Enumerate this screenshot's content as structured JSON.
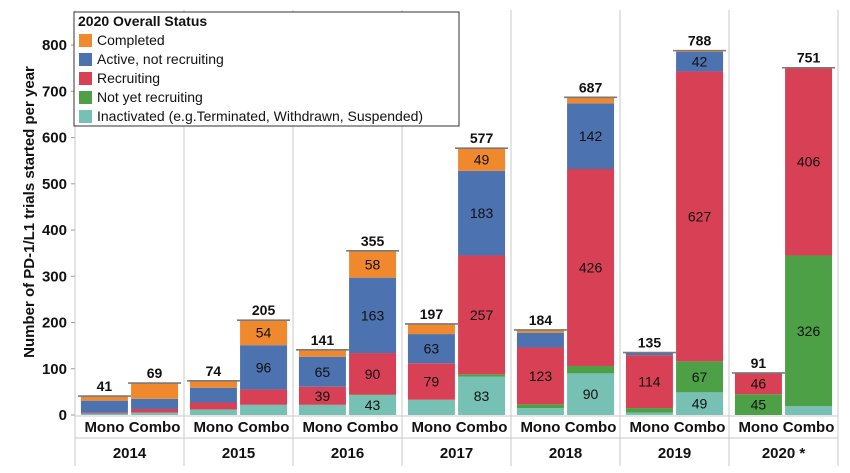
{
  "chart_data": {
    "type": "bar",
    "stacked": true,
    "title": "",
    "xlabel": "",
    "ylabel": "Number of PD-1/L1 trials started per year",
    "ylim": [
      0,
      850
    ],
    "yticks": [
      0,
      100,
      200,
      300,
      400,
      500,
      600,
      700,
      800
    ],
    "grid": false,
    "legend": {
      "title": "2020 Overall Status",
      "placement": "top-left",
      "entries": [
        {
          "label": "Completed",
          "color": "#F0882E"
        },
        {
          "label": "Active, not recruiting",
          "color": "#4C72B0"
        },
        {
          "label": "Recruiting",
          "color": "#D84155"
        },
        {
          "label": "Not yet recruiting",
          "color": "#4DA046"
        },
        {
          "label": "Inactivated (e.g.Terminated, Withdrawn, Suspended)",
          "color": "#76C1B3"
        }
      ]
    },
    "years": [
      "2014",
      "2015",
      "2016",
      "2017",
      "2018",
      "2019",
      "2020 *"
    ],
    "subcategories": [
      "Mono",
      "Combo"
    ],
    "bars": [
      {
        "year": "2014",
        "cat": "Mono",
        "total": "41",
        "segments": [
          {
            "status": "Inactivated",
            "value": 3,
            "label": ""
          },
          {
            "status": "Not yet recruiting",
            "value": 0,
            "label": ""
          },
          {
            "status": "Recruiting",
            "value": 2,
            "label": ""
          },
          {
            "status": "Active, not recruiting",
            "value": 26,
            "label": ""
          },
          {
            "status": "Completed",
            "value": 10,
            "label": ""
          }
        ]
      },
      {
        "year": "2014",
        "cat": "Combo",
        "total": "69",
        "segments": [
          {
            "status": "Inactivated",
            "value": 5,
            "label": ""
          },
          {
            "status": "Not yet recruiting",
            "value": 0,
            "label": ""
          },
          {
            "status": "Recruiting",
            "value": 8,
            "label": ""
          },
          {
            "status": "Active, not recruiting",
            "value": 22,
            "label": ""
          },
          {
            "status": "Completed",
            "value": 34,
            "label": ""
          }
        ]
      },
      {
        "year": "2015",
        "cat": "Mono",
        "total": "74",
        "segments": [
          {
            "status": "Inactivated",
            "value": 12,
            "label": ""
          },
          {
            "status": "Not yet recruiting",
            "value": 0,
            "label": ""
          },
          {
            "status": "Recruiting",
            "value": 15,
            "label": ""
          },
          {
            "status": "Active, not recruiting",
            "value": 32,
            "label": ""
          },
          {
            "status": "Completed",
            "value": 15,
            "label": ""
          }
        ]
      },
      {
        "year": "2015",
        "cat": "Combo",
        "total": "205",
        "segments": [
          {
            "status": "Inactivated",
            "value": 22,
            "label": ""
          },
          {
            "status": "Not yet recruiting",
            "value": 0,
            "label": ""
          },
          {
            "status": "Recruiting",
            "value": 33,
            "label": ""
          },
          {
            "status": "Active, not recruiting",
            "value": 96,
            "label": "96"
          },
          {
            "status": "Completed",
            "value": 54,
            "label": "54"
          }
        ]
      },
      {
        "year": "2016",
        "cat": "Mono",
        "total": "141",
        "segments": [
          {
            "status": "Inactivated",
            "value": 22,
            "label": ""
          },
          {
            "status": "Not yet recruiting",
            "value": 0,
            "label": ""
          },
          {
            "status": "Recruiting",
            "value": 39,
            "label": "39"
          },
          {
            "status": "Active, not recruiting",
            "value": 65,
            "label": "65"
          },
          {
            "status": "Completed",
            "value": 15,
            "label": ""
          }
        ]
      },
      {
        "year": "2016",
        "cat": "Combo",
        "total": "355",
        "segments": [
          {
            "status": "Inactivated",
            "value": 43,
            "label": "43"
          },
          {
            "status": "Not yet recruiting",
            "value": 1,
            "label": ""
          },
          {
            "status": "Recruiting",
            "value": 90,
            "label": "90"
          },
          {
            "status": "Active, not recruiting",
            "value": 163,
            "label": "163"
          },
          {
            "status": "Completed",
            "value": 58,
            "label": "58"
          }
        ]
      },
      {
        "year": "2017",
        "cat": "Mono",
        "total": "197",
        "segments": [
          {
            "status": "Inactivated",
            "value": 33,
            "label": ""
          },
          {
            "status": "Not yet recruiting",
            "value": 0,
            "label": ""
          },
          {
            "status": "Recruiting",
            "value": 79,
            "label": "79"
          },
          {
            "status": "Active, not recruiting",
            "value": 63,
            "label": "63"
          },
          {
            "status": "Completed",
            "value": 22,
            "label": ""
          }
        ]
      },
      {
        "year": "2017",
        "cat": "Combo",
        "total": "577",
        "segments": [
          {
            "status": "Inactivated",
            "value": 83,
            "label": "83"
          },
          {
            "status": "Not yet recruiting",
            "value": 5,
            "label": ""
          },
          {
            "status": "Recruiting",
            "value": 257,
            "label": "257"
          },
          {
            "status": "Active, not recruiting",
            "value": 183,
            "label": "183"
          },
          {
            "status": "Completed",
            "value": 49,
            "label": "49"
          }
        ]
      },
      {
        "year": "2018",
        "cat": "Mono",
        "total": "184",
        "segments": [
          {
            "status": "Inactivated",
            "value": 15,
            "label": ""
          },
          {
            "status": "Not yet recruiting",
            "value": 8,
            "label": ""
          },
          {
            "status": "Recruiting",
            "value": 123,
            "label": "123"
          },
          {
            "status": "Active, not recruiting",
            "value": 32,
            "label": ""
          },
          {
            "status": "Completed",
            "value": 6,
            "label": ""
          }
        ]
      },
      {
        "year": "2018",
        "cat": "Combo",
        "total": "687",
        "segments": [
          {
            "status": "Inactivated",
            "value": 90,
            "label": "90"
          },
          {
            "status": "Not yet recruiting",
            "value": 16,
            "label": ""
          },
          {
            "status": "Recruiting",
            "value": 426,
            "label": "426"
          },
          {
            "status": "Active, not recruiting",
            "value": 142,
            "label": "142"
          },
          {
            "status": "Completed",
            "value": 13,
            "label": ""
          }
        ]
      },
      {
        "year": "2019",
        "cat": "Mono",
        "total": "135",
        "segments": [
          {
            "status": "Inactivated",
            "value": 5,
            "label": ""
          },
          {
            "status": "Not yet recruiting",
            "value": 10,
            "label": ""
          },
          {
            "status": "Recruiting",
            "value": 114,
            "label": "114"
          },
          {
            "status": "Active, not recruiting",
            "value": 6,
            "label": ""
          },
          {
            "status": "Completed",
            "value": 0,
            "label": ""
          }
        ]
      },
      {
        "year": "2019",
        "cat": "Combo",
        "total": "788",
        "segments": [
          {
            "status": "Inactivated",
            "value": 49,
            "label": "49"
          },
          {
            "status": "Not yet recruiting",
            "value": 67,
            "label": "67"
          },
          {
            "status": "Recruiting",
            "value": 627,
            "label": "627"
          },
          {
            "status": "Active, not recruiting",
            "value": 42,
            "label": "42"
          },
          {
            "status": "Completed",
            "value": 3,
            "label": ""
          }
        ]
      },
      {
        "year": "2020 *",
        "cat": "Mono",
        "total": "91",
        "segments": [
          {
            "status": "Inactivated",
            "value": 0,
            "label": ""
          },
          {
            "status": "Not yet recruiting",
            "value": 45,
            "label": "45"
          },
          {
            "status": "Recruiting",
            "value": 46,
            "label": "46"
          },
          {
            "status": "Active, not recruiting",
            "value": 0,
            "label": ""
          },
          {
            "status": "Completed",
            "value": 0,
            "label": ""
          }
        ]
      },
      {
        "year": "2020 *",
        "cat": "Combo",
        "total": "751",
        "segments": [
          {
            "status": "Inactivated",
            "value": 19,
            "label": ""
          },
          {
            "status": "Not yet recruiting",
            "value": 326,
            "label": "326"
          },
          {
            "status": "Recruiting",
            "value": 406,
            "label": "406"
          },
          {
            "status": "Active, not recruiting",
            "value": 0,
            "label": ""
          },
          {
            "status": "Completed",
            "value": 0,
            "label": ""
          }
        ]
      }
    ]
  }
}
